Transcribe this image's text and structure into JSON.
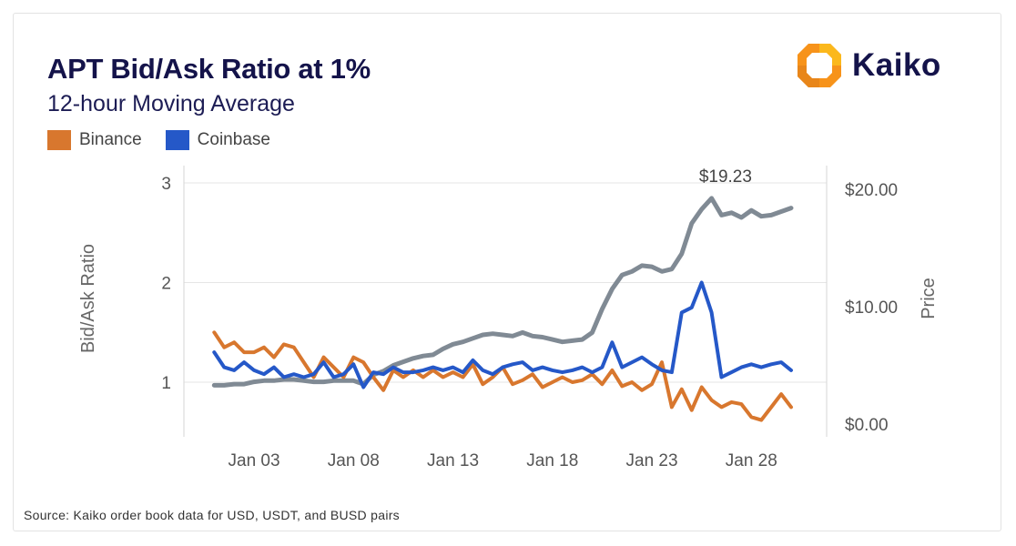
{
  "header": {
    "title": "APT Bid/Ask Ratio at 1%",
    "subtitle": "12-hour Moving Average"
  },
  "brand": {
    "name": "Kaiko",
    "colors": {
      "orange": "#f7931a",
      "yellow": "#fbb81c",
      "navy": "#14134a"
    }
  },
  "footer": {
    "source": "Source: Kaiko order book data for USD, USDT, and BUSD pairs"
  },
  "chart_data": {
    "type": "line",
    "title": "APT Bid/Ask Ratio at 1%",
    "subtitle": "12-hour Moving Average",
    "ylabel": "Bid/Ask Ratio",
    "y2label": "Price",
    "ylim": [
      0.5,
      3.1
    ],
    "y2lim": [
      0,
      21
    ],
    "xlim": [
      0,
      30.5
    ],
    "yticks": [
      "3",
      "2",
      "1"
    ],
    "yticks_values": [
      3,
      2,
      1
    ],
    "y2ticks": [
      "$20.00",
      "$10.00",
      "$0.00"
    ],
    "y2ticks_values": [
      20,
      10,
      0
    ],
    "xticks": [
      "Jan 03",
      "Jan 08",
      "Jan 13",
      "Jan 18",
      "Jan 23",
      "Jan 28"
    ],
    "xticks_values": [
      3,
      8,
      13,
      18,
      23,
      28
    ],
    "annotation": {
      "text": "$19.23",
      "x": 26.7,
      "y": 19.23,
      "axis": "y2"
    },
    "series": [
      {
        "name": "Binance",
        "axis": "y",
        "color": "#d8772e",
        "x": [
          1,
          1.5,
          2,
          2.5,
          3,
          3.5,
          4,
          4.5,
          5,
          5.5,
          6,
          6.5,
          7,
          7.5,
          8,
          8.5,
          9,
          9.5,
          10,
          10.5,
          11,
          11.5,
          12,
          12.5,
          13,
          13.5,
          14,
          14.5,
          15,
          15.5,
          16,
          16.5,
          17,
          17.5,
          18,
          18.5,
          19,
          19.5,
          20,
          20.5,
          21,
          21.5,
          22,
          22.5,
          23,
          23.5,
          24,
          24.5,
          25,
          25.5,
          26,
          26.5,
          27,
          27.5,
          28,
          28.5,
          29,
          29.5,
          30
        ],
        "y": [
          1.5,
          1.35,
          1.4,
          1.3,
          1.3,
          1.35,
          1.25,
          1.38,
          1.35,
          1.2,
          1.05,
          1.25,
          1.15,
          1.05,
          1.25,
          1.2,
          1.05,
          0.92,
          1.12,
          1.05,
          1.12,
          1.05,
          1.12,
          1.05,
          1.1,
          1.05,
          1.18,
          0.98,
          1.05,
          1.15,
          0.98,
          1.02,
          1.08,
          0.95,
          1.0,
          1.05,
          1.0,
          1.02,
          1.08,
          0.98,
          1.12,
          0.96,
          1.0,
          0.92,
          0.98,
          1.2,
          0.75,
          0.93,
          0.72,
          0.95,
          0.82,
          0.75,
          0.8,
          0.78,
          0.65,
          0.62,
          0.75,
          0.88,
          0.75
        ]
      },
      {
        "name": "Coinbase",
        "axis": "y",
        "color": "#2558c8",
        "x": [
          1,
          1.5,
          2,
          2.5,
          3,
          3.5,
          4,
          4.5,
          5,
          5.5,
          6,
          6.5,
          7,
          7.5,
          8,
          8.5,
          9,
          9.5,
          10,
          10.5,
          11,
          11.5,
          12,
          12.5,
          13,
          13.5,
          14,
          14.5,
          15,
          15.5,
          16,
          16.5,
          17,
          17.5,
          18,
          18.5,
          19,
          19.5,
          20,
          20.5,
          21,
          21.5,
          22,
          22.5,
          23,
          23.5,
          24,
          24.5,
          25,
          25.5,
          26,
          26.5,
          27,
          27.5,
          28,
          28.5,
          29,
          29.5,
          30
        ],
        "y": [
          1.3,
          1.15,
          1.12,
          1.2,
          1.12,
          1.08,
          1.15,
          1.05,
          1.08,
          1.05,
          1.08,
          1.2,
          1.05,
          1.08,
          1.18,
          0.95,
          1.1,
          1.08,
          1.15,
          1.1,
          1.1,
          1.12,
          1.15,
          1.12,
          1.15,
          1.1,
          1.22,
          1.12,
          1.08,
          1.15,
          1.18,
          1.2,
          1.12,
          1.15,
          1.12,
          1.1,
          1.12,
          1.15,
          1.1,
          1.15,
          1.4,
          1.15,
          1.2,
          1.25,
          1.18,
          1.12,
          1.1,
          1.7,
          1.75,
          2.0,
          1.7,
          1.05,
          1.1,
          1.15,
          1.18,
          1.15,
          1.18,
          1.2,
          1.12
        ]
      },
      {
        "name": "Price",
        "axis": "y2",
        "color": "#808a94",
        "x": [
          1,
          1.5,
          2,
          2.5,
          3,
          3.5,
          4,
          4.5,
          5,
          5.5,
          6,
          6.5,
          7,
          7.5,
          8,
          8.5,
          9,
          9.5,
          10,
          10.5,
          11,
          11.5,
          12,
          12.5,
          13,
          13.5,
          14,
          14.5,
          15,
          15.5,
          16,
          16.5,
          17,
          17.5,
          18,
          18.5,
          19,
          19.5,
          20,
          20.5,
          21,
          21.5,
          22,
          22.5,
          23,
          23.5,
          24,
          24.5,
          25,
          25.5,
          26,
          26.5,
          27,
          27.5,
          28,
          28.5,
          29,
          29.5,
          30
        ],
        "y": [
          3.3,
          3.3,
          3.4,
          3.4,
          3.6,
          3.7,
          3.7,
          3.8,
          3.8,
          3.7,
          3.6,
          3.6,
          3.7,
          3.7,
          3.7,
          3.4,
          4.2,
          4.5,
          5.0,
          5.3,
          5.6,
          5.8,
          5.9,
          6.4,
          6.8,
          7.0,
          7.3,
          7.6,
          7.7,
          7.6,
          7.5,
          7.8,
          7.5,
          7.4,
          7.2,
          7.0,
          7.1,
          7.2,
          7.8,
          9.8,
          11.5,
          12.7,
          13.0,
          13.5,
          13.4,
          13.0,
          13.2,
          14.5,
          17.1,
          18.3,
          19.23,
          17.8,
          18.0,
          17.6,
          18.2,
          17.7,
          17.8,
          18.1,
          18.4
        ]
      }
    ]
  }
}
